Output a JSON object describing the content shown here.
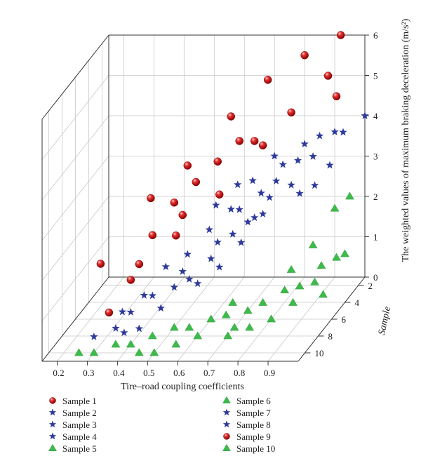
{
  "chart_data": {
    "type": "scatter",
    "projection": "3d",
    "xlabel": "Tire–road coupling coefficients",
    "ylabel": "Sample",
    "zlabel": "The weighted values of maximum braking deceleration (m/s²)",
    "x_ticks": [
      "0.2",
      "0.3",
      "0.4",
      "0.5",
      "0.6",
      "0.7",
      "0.8",
      "0.9"
    ],
    "y_ticks": [
      "2",
      "4",
      "6",
      "8",
      "10"
    ],
    "z_ticks": [
      "0",
      "1",
      "2",
      "3",
      "4",
      "5",
      "6"
    ],
    "xlim": [
      0.15,
      1.0
    ],
    "ylim": [
      1,
      11
    ],
    "zlim": [
      0,
      6
    ],
    "grid": true,
    "legend_position": "bottom",
    "legend": [
      {
        "label": "Sample 1",
        "marker": "sphere",
        "color": "#dd1c1c"
      },
      {
        "label": "Sample 2",
        "marker": "star",
        "color": "#2e3a9b"
      },
      {
        "label": "Sample 3",
        "marker": "star",
        "color": "#2e3a9b"
      },
      {
        "label": "Sample 4",
        "marker": "star",
        "color": "#2e3a9b"
      },
      {
        "label": "Sample 5",
        "marker": "triangle",
        "color": "#3dbb4a"
      },
      {
        "label": "Sample 6",
        "marker": "triangle",
        "color": "#3dbb4a"
      },
      {
        "label": "Sample 7",
        "marker": "star",
        "color": "#2e3a9b"
      },
      {
        "label": "Sample 8",
        "marker": "star",
        "color": "#2e3a9b"
      },
      {
        "label": "Sample 9",
        "marker": "sphere",
        "color": "#dd1c1c"
      },
      {
        "label": "Sample 10",
        "marker": "triangle",
        "color": "#3dbb4a"
      }
    ],
    "series": [
      {
        "group": "red",
        "marker": "sphere",
        "color": "#dd1c1c",
        "points": [
          [
            0.35,
            10,
            1.0
          ],
          [
            0.4,
            9,
            1.6
          ],
          [
            0.45,
            8,
            2.5
          ],
          [
            0.5,
            7,
            3.1
          ],
          [
            0.55,
            6,
            3.4
          ],
          [
            0.6,
            5,
            3.7
          ],
          [
            0.7,
            4,
            4.0
          ],
          [
            0.8,
            3,
            4.5
          ],
          [
            0.9,
            2,
            5.2
          ],
          [
            0.3,
            9,
            2.0
          ],
          [
            0.45,
            10,
            2.2
          ],
          [
            0.55,
            9,
            2.7
          ],
          [
            0.65,
            7,
            3.3
          ],
          [
            0.75,
            5,
            4.1
          ],
          [
            0.95,
            3,
            4.9
          ],
          [
            0.4,
            6,
            3.0
          ],
          [
            0.5,
            5,
            3.6
          ],
          [
            0.6,
            3,
            4.4
          ],
          [
            0.7,
            2,
            5.1
          ],
          [
            0.65,
            4,
            4.0
          ],
          [
            0.8,
            1,
            5.5
          ],
          [
            0.92,
            1,
            6.0
          ],
          [
            0.55,
            8,
            3.0
          ]
        ]
      },
      {
        "group": "blue",
        "marker": "star",
        "color": "#2e3a9b",
        "points": [
          [
            0.3,
            10,
            0.4
          ],
          [
            0.35,
            9,
            0.4
          ],
          [
            0.35,
            8,
            0.6
          ],
          [
            0.4,
            9,
            0.8
          ],
          [
            0.4,
            7,
            0.8
          ],
          [
            0.45,
            8,
            1.0
          ],
          [
            0.5,
            7,
            1.0
          ],
          [
            0.45,
            6,
            1.3
          ],
          [
            0.55,
            7,
            1.2
          ],
          [
            0.5,
            5,
            1.4
          ],
          [
            0.55,
            8,
            1.6
          ],
          [
            0.6,
            6,
            1.5
          ],
          [
            0.55,
            4,
            1.8
          ],
          [
            0.6,
            5,
            1.7
          ],
          [
            0.65,
            5,
            1.9
          ],
          [
            0.6,
            3,
            2.1
          ],
          [
            0.65,
            4,
            2.3
          ],
          [
            0.7,
            4,
            2.1
          ],
          [
            0.7,
            3,
            2.5
          ],
          [
            0.75,
            4,
            2.6
          ],
          [
            0.75,
            3,
            2.8
          ],
          [
            0.8,
            3,
            2.7
          ],
          [
            0.7,
            6,
            1.9
          ],
          [
            0.65,
            7,
            1.5
          ],
          [
            0.55,
            3,
            2.2
          ],
          [
            0.6,
            2,
            2.5
          ],
          [
            0.65,
            2,
            2.6
          ],
          [
            0.75,
            2,
            3.0
          ],
          [
            0.8,
            2,
            3.1
          ],
          [
            0.85,
            2,
            3.2
          ],
          [
            0.9,
            4,
            2.9
          ],
          [
            0.85,
            4,
            2.7
          ],
          [
            0.7,
            1,
            3.0
          ],
          [
            0.8,
            1,
            3.3
          ],
          [
            0.85,
            1,
            3.5
          ],
          [
            0.9,
            1,
            3.6
          ],
          [
            0.95,
            2,
            3.8
          ],
          [
            1.0,
            1,
            4.0
          ],
          [
            0.95,
            4,
            3.4
          ],
          [
            0.5,
            9,
            0.9
          ],
          [
            0.45,
            10,
            0.6
          ],
          [
            0.4,
            10,
            0.5
          ],
          [
            0.6,
            8,
            1.3
          ],
          [
            0.7,
            5,
            2.2
          ],
          [
            0.75,
            5,
            2.4
          ]
        ]
      },
      {
        "group": "green",
        "marker": "triangle",
        "color": "#3dbb4a",
        "points": [
          [
            0.25,
            10,
            0.0
          ],
          [
            0.3,
            10,
            0.0
          ],
          [
            0.35,
            9,
            0.0
          ],
          [
            0.4,
            9,
            0.0
          ],
          [
            0.45,
            10,
            0.0
          ],
          [
            0.5,
            10,
            0.0
          ],
          [
            0.45,
            8,
            0.0
          ],
          [
            0.55,
            9,
            0.0
          ],
          [
            0.5,
            7,
            0.0
          ],
          [
            0.55,
            7,
            0.0
          ],
          [
            0.6,
            8,
            0.0
          ],
          [
            0.6,
            6,
            0.0
          ],
          [
            0.65,
            6,
            0.1
          ],
          [
            0.7,
            7,
            0.0
          ],
          [
            0.7,
            5,
            0.0
          ],
          [
            0.65,
            5,
            0.2
          ],
          [
            0.75,
            5,
            0.2
          ],
          [
            0.8,
            6,
            0.0
          ],
          [
            0.8,
            4,
            0.3
          ],
          [
            0.85,
            4,
            0.4
          ],
          [
            0.85,
            5,
            0.2
          ],
          [
            0.9,
            4,
            0.5
          ],
          [
            0.9,
            3,
            0.7
          ],
          [
            0.95,
            3,
            0.9
          ],
          [
            0.95,
            5,
            0.4
          ],
          [
            1.0,
            4,
            1.2
          ],
          [
            0.75,
            7,
            0.0
          ],
          [
            0.7,
            8,
            0.0
          ],
          [
            0.9,
            1,
            1.7
          ],
          [
            0.95,
            1,
            2.0
          ],
          [
            0.85,
            2,
            1.0
          ],
          [
            0.8,
            3,
            0.6
          ]
        ]
      }
    ]
  }
}
